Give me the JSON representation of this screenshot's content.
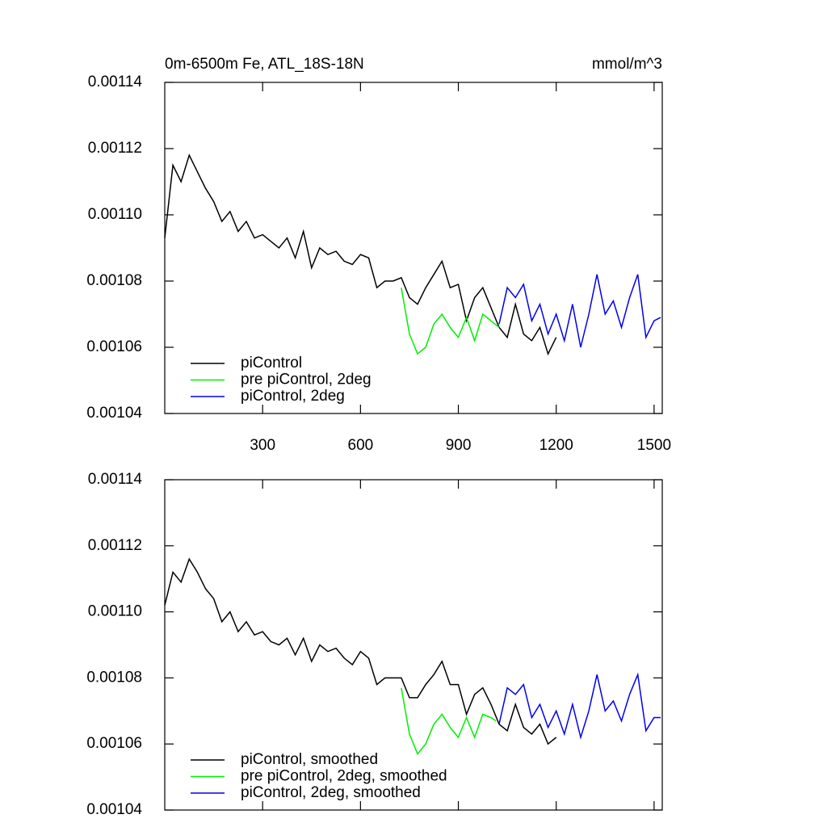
{
  "chart_data": [
    {
      "type": "line",
      "title": "0m-6500m Fe, ATL_18S-18N",
      "units": "mmol/m^3",
      "xlim": [
        0,
        1525
      ],
      "xticks": [
        300,
        600,
        900,
        1200,
        1500
      ],
      "show_xtick_labels": true,
      "ylim": [
        0.00104,
        0.00114
      ],
      "yticks": [
        0.00104,
        0.00106,
        0.00108,
        {
          "value": 0.0011,
          "label": "0.00110"
        },
        0.00112,
        0.00114
      ],
      "legend": "lower left",
      "series": [
        {
          "name": "piControl",
          "color": "#000000",
          "x": [
            0,
            25,
            50,
            75,
            100,
            125,
            150,
            175,
            200,
            225,
            250,
            275,
            300,
            325,
            350,
            375,
            400,
            425,
            450,
            475,
            500,
            525,
            550,
            575,
            600,
            625,
            650,
            675,
            700,
            725,
            750,
            775,
            800,
            825,
            850,
            875,
            900,
            925,
            950,
            975,
            1000,
            1025,
            1050,
            1075,
            1100,
            1125,
            1150,
            1175,
            1200
          ],
          "values": [
            0.001093,
            0.001115,
            0.00111,
            0.001118,
            0.001113,
            0.001108,
            0.001104,
            0.001098,
            0.001101,
            0.001095,
            0.001098,
            0.001093,
            0.001094,
            0.001092,
            0.00109,
            0.001093,
            0.001087,
            0.001095,
            0.001084,
            0.00109,
            0.001088,
            0.001089,
            0.001086,
            0.001085,
            0.001088,
            0.001087,
            0.001078,
            0.00108,
            0.00108,
            0.001081,
            0.001075,
            0.001073,
            0.001078,
            0.001082,
            0.001086,
            0.001078,
            0.001079,
            0.001068,
            0.001075,
            0.001078,
            0.001072,
            0.001066,
            0.001063,
            0.001073,
            0.001064,
            0.001062,
            0.001066,
            0.001058,
            0.001063
          ]
        },
        {
          "name": "pre piControl, 2deg",
          "color": "#00ee00",
          "x": [
            725,
            750,
            775,
            800,
            825,
            850,
            875,
            900,
            925,
            950,
            975,
            1000,
            1025
          ],
          "values": [
            0.001078,
            0.001064,
            0.001058,
            0.00106,
            0.001067,
            0.00107,
            0.001066,
            0.001063,
            0.001069,
            0.001062,
            0.00107,
            0.001068,
            0.001066
          ]
        },
        {
          "name": "piControl, 2deg",
          "color": "#0000ee",
          "x": [
            1025,
            1050,
            1075,
            1100,
            1125,
            1150,
            1175,
            1200,
            1225,
            1250,
            1275,
            1300,
            1325,
            1350,
            1375,
            1400,
            1425,
            1450,
            1475,
            1500,
            1520
          ],
          "values": [
            0.001067,
            0.001078,
            0.001075,
            0.001079,
            0.001068,
            0.001073,
            0.001064,
            0.00107,
            0.001062,
            0.001073,
            0.00106,
            0.00107,
            0.001082,
            0.00107,
            0.001074,
            0.001066,
            0.001075,
            0.001082,
            0.001063,
            0.001068,
            0.001069
          ]
        }
      ]
    },
    {
      "type": "line",
      "xlim": [
        0,
        1525
      ],
      "xticks": [
        300,
        600,
        900,
        1200,
        1500
      ],
      "show_xtick_labels": false,
      "ylim": [
        0.00104,
        0.00114
      ],
      "yticks": [
        0.00104,
        0.00106,
        0.00108,
        {
          "value": 0.0011,
          "label": "0.00110"
        },
        0.00112,
        0.00114
      ],
      "legend": "lower left",
      "series": [
        {
          "name": "piControl, smoothed",
          "color": "#000000",
          "x": [
            0,
            25,
            50,
            75,
            100,
            125,
            150,
            175,
            200,
            225,
            250,
            275,
            300,
            325,
            350,
            375,
            400,
            425,
            450,
            475,
            500,
            525,
            550,
            575,
            600,
            625,
            650,
            675,
            700,
            725,
            750,
            775,
            800,
            825,
            850,
            875,
            900,
            925,
            950,
            975,
            1000,
            1025,
            1050,
            1075,
            1100,
            1125,
            1150,
            1175,
            1200
          ],
          "values": [
            0.001102,
            0.001112,
            0.001109,
            0.001116,
            0.001112,
            0.001107,
            0.001104,
            0.001097,
            0.0011,
            0.001094,
            0.001097,
            0.001093,
            0.001094,
            0.001091,
            0.00109,
            0.001092,
            0.001087,
            0.001092,
            0.001085,
            0.00109,
            0.001088,
            0.001089,
            0.001086,
            0.001084,
            0.001088,
            0.001086,
            0.001078,
            0.00108,
            0.00108,
            0.00108,
            0.001074,
            0.001074,
            0.001078,
            0.001081,
            0.001085,
            0.001078,
            0.001078,
            0.001069,
            0.001075,
            0.001077,
            0.001072,
            0.001066,
            0.001064,
            0.001072,
            0.001065,
            0.001063,
            0.001066,
            0.00106,
            0.001062
          ]
        },
        {
          "name": "pre piControl, 2deg, smoothed",
          "color": "#00ee00",
          "x": [
            725,
            750,
            775,
            800,
            825,
            850,
            875,
            900,
            925,
            950,
            975,
            1000,
            1015
          ],
          "values": [
            0.001077,
            0.001063,
            0.001057,
            0.00106,
            0.001066,
            0.001069,
            0.001065,
            0.001062,
            0.001068,
            0.001062,
            0.001069,
            0.001068,
            0.001067
          ]
        },
        {
          "name": "piControl, 2deg, smoothed",
          "color": "#0000ee",
          "x": [
            1025,
            1050,
            1075,
            1100,
            1125,
            1150,
            1175,
            1200,
            1225,
            1250,
            1275,
            1300,
            1325,
            1350,
            1375,
            1400,
            1425,
            1450,
            1475,
            1500,
            1520
          ],
          "values": [
            0.001066,
            0.001077,
            0.001075,
            0.001078,
            0.001068,
            0.001072,
            0.001065,
            0.00107,
            0.001063,
            0.001072,
            0.001062,
            0.00107,
            0.001081,
            0.00107,
            0.001073,
            0.001067,
            0.001075,
            0.001081,
            0.001064,
            0.001068,
            0.001068
          ]
        }
      ]
    }
  ]
}
